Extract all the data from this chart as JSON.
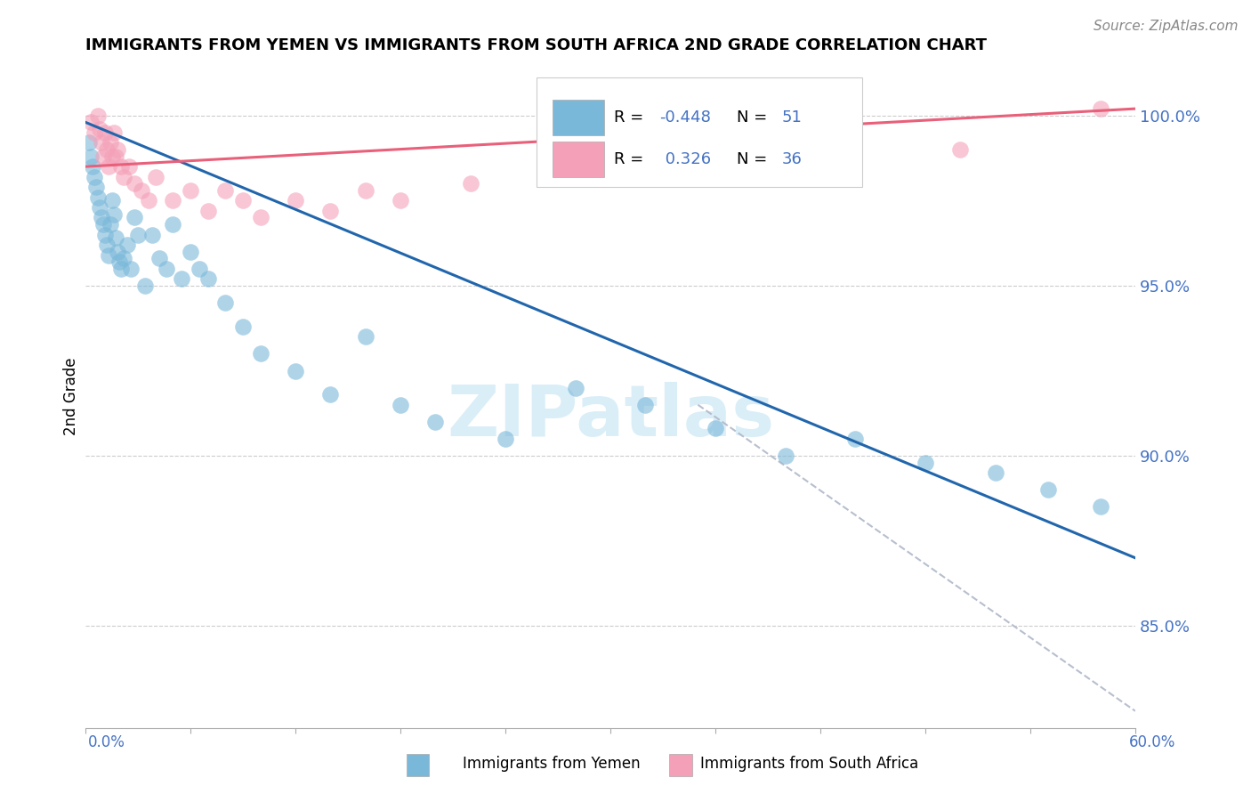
{
  "title": "IMMIGRANTS FROM YEMEN VS IMMIGRANTS FROM SOUTH AFRICA 2ND GRADE CORRELATION CHART",
  "source": "Source: ZipAtlas.com",
  "ylabel_label": "2nd Grade",
  "xlim": [
    0.0,
    0.6
  ],
  "ylim": [
    82.0,
    101.5
  ],
  "ytick_pos": [
    85.0,
    90.0,
    95.0,
    100.0
  ],
  "ytick_labels": [
    "85.0%",
    "90.0%",
    "95.0%",
    "100.0%"
  ],
  "blue_color": "#7ab8d9",
  "pink_color": "#f4a0b8",
  "blue_line_color": "#2166ac",
  "pink_line_color": "#e8607a",
  "dash_line_color": "#b0b8c8",
  "watermark_color": "#daeef8",
  "blue_scatter_x": [
    0.002,
    0.003,
    0.004,
    0.005,
    0.006,
    0.007,
    0.008,
    0.009,
    0.01,
    0.011,
    0.012,
    0.013,
    0.014,
    0.015,
    0.016,
    0.017,
    0.018,
    0.019,
    0.02,
    0.022,
    0.024,
    0.026,
    0.028,
    0.03,
    0.034,
    0.038,
    0.042,
    0.046,
    0.05,
    0.055,
    0.06,
    0.065,
    0.07,
    0.08,
    0.09,
    0.1,
    0.12,
    0.14,
    0.16,
    0.18,
    0.2,
    0.24,
    0.28,
    0.32,
    0.36,
    0.4,
    0.44,
    0.48,
    0.52,
    0.55,
    0.58
  ],
  "blue_scatter_y": [
    99.2,
    98.8,
    98.5,
    98.2,
    97.9,
    97.6,
    97.3,
    97.0,
    96.8,
    96.5,
    96.2,
    95.9,
    96.8,
    97.5,
    97.1,
    96.4,
    96.0,
    95.7,
    95.5,
    95.8,
    96.2,
    95.5,
    97.0,
    96.5,
    95.0,
    96.5,
    95.8,
    95.5,
    96.8,
    95.2,
    96.0,
    95.5,
    95.2,
    94.5,
    93.8,
    93.0,
    92.5,
    91.8,
    93.5,
    91.5,
    91.0,
    90.5,
    92.0,
    91.5,
    90.8,
    90.0,
    90.5,
    89.8,
    89.5,
    89.0,
    88.5
  ],
  "pink_scatter_x": [
    0.003,
    0.005,
    0.007,
    0.008,
    0.009,
    0.01,
    0.011,
    0.012,
    0.013,
    0.014,
    0.015,
    0.016,
    0.017,
    0.018,
    0.02,
    0.022,
    0.025,
    0.028,
    0.032,
    0.036,
    0.04,
    0.05,
    0.06,
    0.07,
    0.08,
    0.09,
    0.1,
    0.12,
    0.14,
    0.16,
    0.18,
    0.22,
    0.28,
    0.35,
    0.5,
    0.58
  ],
  "pink_scatter_y": [
    99.8,
    99.5,
    100.0,
    99.6,
    99.2,
    98.8,
    99.5,
    99.0,
    98.5,
    99.2,
    98.8,
    99.5,
    98.8,
    99.0,
    98.5,
    98.2,
    98.5,
    98.0,
    97.8,
    97.5,
    98.2,
    97.5,
    97.8,
    97.2,
    97.8,
    97.5,
    97.0,
    97.5,
    97.2,
    97.8,
    97.5,
    98.0,
    98.2,
    98.5,
    99.0,
    100.2
  ],
  "blue_line_x0": 0.0,
  "blue_line_y0": 99.8,
  "blue_line_x1": 0.6,
  "blue_line_y1": 87.0,
  "pink_line_x0": 0.0,
  "pink_line_y0": 98.5,
  "pink_line_x1": 0.6,
  "pink_line_y1": 100.2,
  "dash_line_x0": 0.35,
  "dash_line_y0": 91.5,
  "dash_line_x1": 0.6,
  "dash_line_y1": 82.5
}
